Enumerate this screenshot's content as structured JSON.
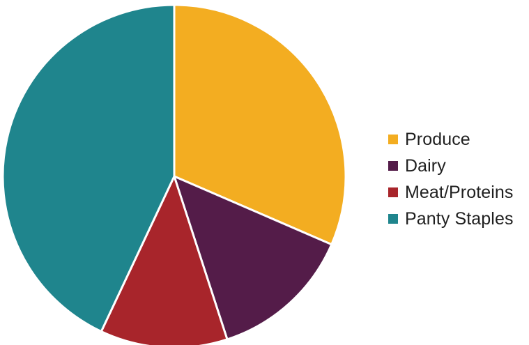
{
  "chart_data": {
    "type": "pie",
    "title": "",
    "categories": [
      "Produce",
      "Dairy",
      "Meat/Proteins",
      "Panty Staples"
    ],
    "values": [
      31.5,
      13.5,
      12,
      43
    ],
    "colors": [
      "#f3ad21",
      "#541c49",
      "#a8252b",
      "#1f858d"
    ],
    "legend": "right",
    "start_angle_deg": 0,
    "direction": "clockwise"
  }
}
